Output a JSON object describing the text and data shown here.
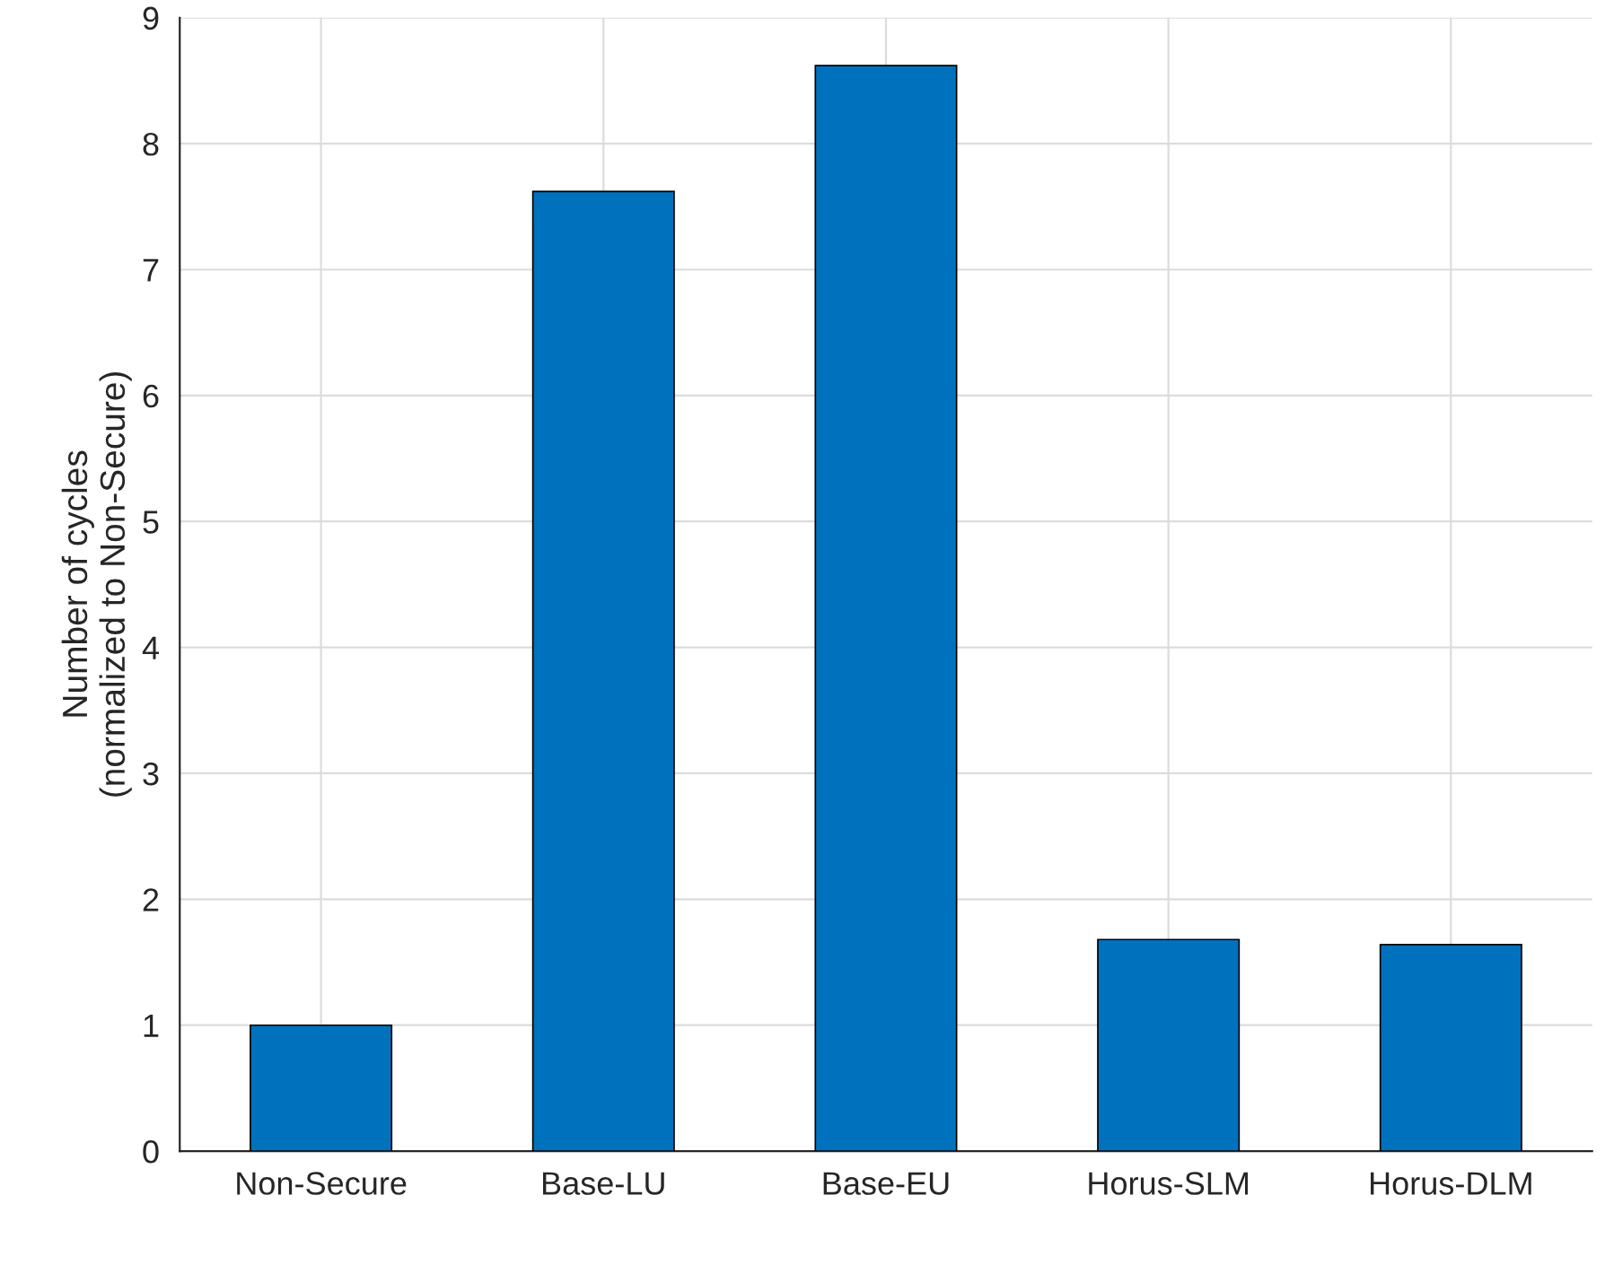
{
  "chart_data": {
    "type": "bar",
    "ylabel": "Number of cycles\n(normalized to Non-Secure)",
    "categories": [
      "Non-Secure",
      "Base-LU",
      "Base-EU",
      "Horus-SLM",
      "Horus-DLM"
    ],
    "values": [
      1.0,
      7.62,
      8.62,
      1.68,
      1.64
    ],
    "color": "#0072bd",
    "ylim": [
      0,
      9
    ],
    "yticks": [
      0,
      1,
      2,
      3,
      4,
      5,
      6,
      7,
      8,
      9
    ],
    "grid": true
  }
}
